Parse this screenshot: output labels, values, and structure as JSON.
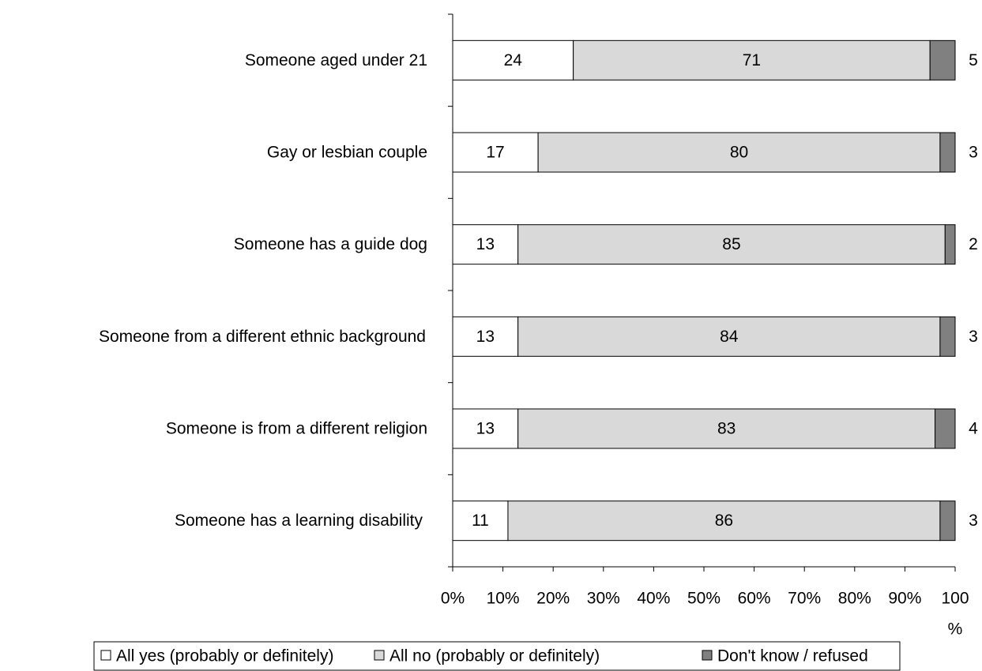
{
  "chart_data": {
    "type": "bar",
    "orientation": "horizontal",
    "stacked": true,
    "categories": [
      "Someone aged under 21",
      "Gay or lesbian couple",
      "Someone has a guide dog",
      "Someone from a different ethnic background",
      "Someone is from a different religion",
      "Someone has a learning disability"
    ],
    "series": [
      {
        "name": "All yes (probably or definitely)",
        "values": [
          24,
          17,
          13,
          13,
          13,
          11
        ],
        "color": "#ffffff"
      },
      {
        "name": "All no (probably or definitely)",
        "values": [
          71,
          80,
          85,
          84,
          83,
          86
        ],
        "color": "#d9d9d9"
      },
      {
        "name": "Don't know / refused",
        "values": [
          5,
          3,
          2,
          3,
          4,
          3
        ],
        "color": "#808080"
      }
    ],
    "xlim": [
      0,
      100
    ],
    "xticks": [
      "0%",
      "10%",
      "20%",
      "30%",
      "40%",
      "50%",
      "60%",
      "70%",
      "80%",
      "90%",
      "100",
      "%"
    ],
    "grid": false,
    "legend_position": "bottom"
  }
}
